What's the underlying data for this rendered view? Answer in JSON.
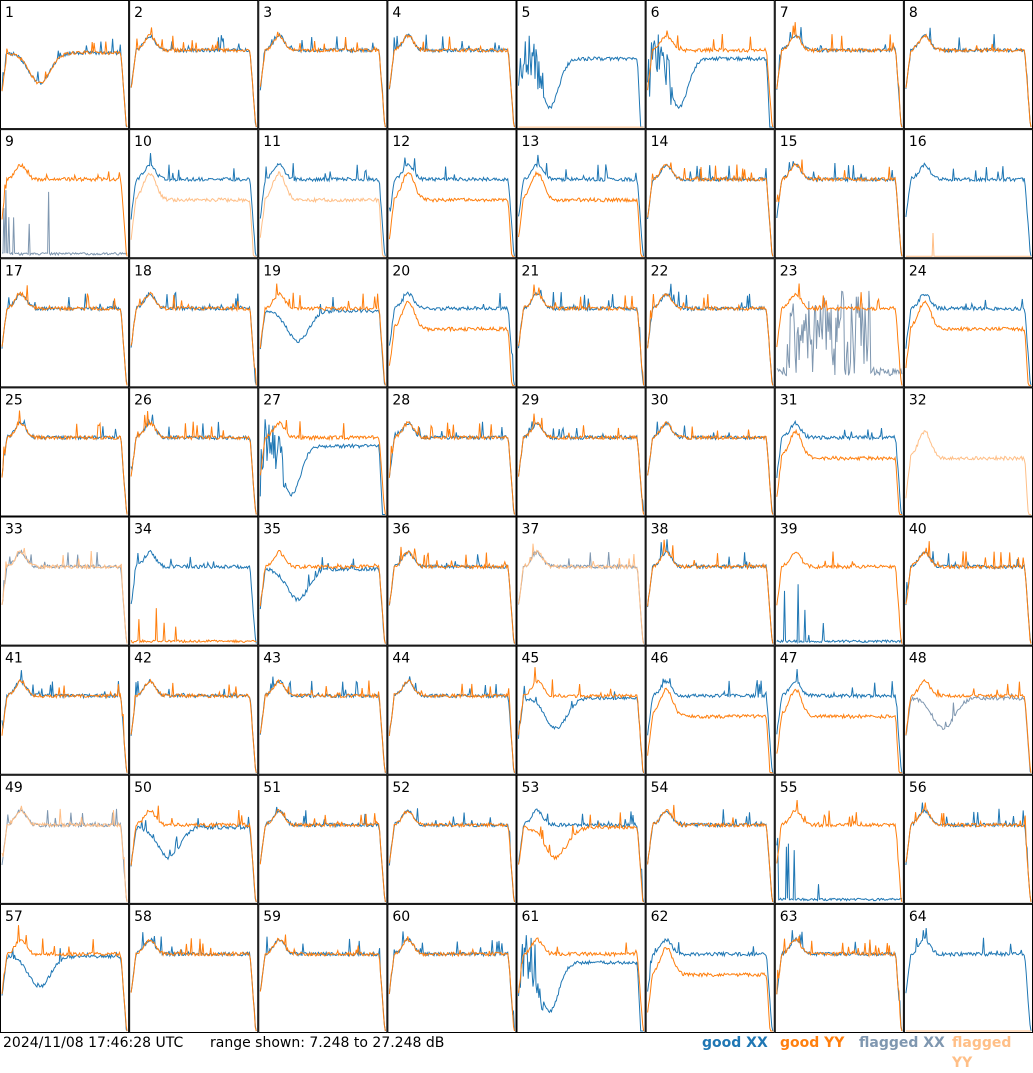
{
  "footer": {
    "timestamp": "2024/11/08 17:46:28 UTC",
    "range_text": "range shown: 7.248 to 27.248 dB",
    "legend": {
      "good_xx": "good XX",
      "good_yy": "good YY",
      "flagged_xx": "flagged XX",
      "flagged_yy": "flagged YY"
    }
  },
  "colors": {
    "good_xx": "#1f77b4",
    "good_yy": "#ff7f0e",
    "flagged_xx": "#7f97b0",
    "flagged_yy": "#ffbf87",
    "grid": "#000000"
  },
  "chart_data": {
    "type": "line",
    "grid_rows": 8,
    "grid_cols": 8,
    "y_range_db": [
      7.248,
      27.248
    ],
    "panels": [
      {
        "id": "1",
        "xx": "good",
        "yy": "good",
        "xx_shape": "dip",
        "yy_shape": "dip"
      },
      {
        "id": "2",
        "xx": "good",
        "yy": "good",
        "xx_shape": "flat",
        "yy_shape": "flat"
      },
      {
        "id": "3",
        "xx": "good",
        "yy": "good",
        "xx_shape": "flat",
        "yy_shape": "flat"
      },
      {
        "id": "4",
        "xx": "good",
        "yy": "good",
        "xx_shape": "flat",
        "yy_shape": "flat"
      },
      {
        "id": "5",
        "xx": "good",
        "yy": "flagged",
        "xx_shape": "deepdip",
        "yy_shape": "dead"
      },
      {
        "id": "6",
        "xx": "good",
        "yy": "good",
        "xx_shape": "deepdip",
        "yy_shape": "flat"
      },
      {
        "id": "7",
        "xx": "good",
        "yy": "good",
        "xx_shape": "flat",
        "yy_shape": "flat"
      },
      {
        "id": "8",
        "xx": "good",
        "yy": "good",
        "xx_shape": "flat",
        "yy_shape": "flat"
      },
      {
        "id": "9",
        "xx": "flagged",
        "yy": "good",
        "xx_shape": "spiky_low",
        "yy_shape": "flat"
      },
      {
        "id": "10",
        "xx": "good",
        "yy": "flagged",
        "xx_shape": "flat",
        "yy_shape": "lower"
      },
      {
        "id": "11",
        "xx": "good",
        "yy": "flagged",
        "xx_shape": "flat",
        "yy_shape": "lower"
      },
      {
        "id": "12",
        "xx": "good",
        "yy": "good",
        "xx_shape": "flat",
        "yy_shape": "lower"
      },
      {
        "id": "13",
        "xx": "good",
        "yy": "good",
        "xx_shape": "flat",
        "yy_shape": "lower"
      },
      {
        "id": "14",
        "xx": "good",
        "yy": "good",
        "xx_shape": "flat",
        "yy_shape": "flat"
      },
      {
        "id": "15",
        "xx": "good",
        "yy": "good",
        "xx_shape": "flat",
        "yy_shape": "flat"
      },
      {
        "id": "16",
        "xx": "good",
        "yy": "flagged",
        "xx_shape": "flat",
        "yy_shape": "dead"
      },
      {
        "id": "17",
        "xx": "good",
        "yy": "good",
        "xx_shape": "flat",
        "yy_shape": "flat"
      },
      {
        "id": "18",
        "xx": "good",
        "yy": "good",
        "xx_shape": "flat",
        "yy_shape": "flat"
      },
      {
        "id": "19",
        "xx": "good",
        "yy": "good",
        "xx_shape": "dip",
        "yy_shape": "flat"
      },
      {
        "id": "20",
        "xx": "good",
        "yy": "good",
        "xx_shape": "flat",
        "yy_shape": "lower"
      },
      {
        "id": "21",
        "xx": "good",
        "yy": "good",
        "xx_shape": "flat",
        "yy_shape": "flat"
      },
      {
        "id": "22",
        "xx": "good",
        "yy": "good",
        "xx_shape": "flat",
        "yy_shape": "flat"
      },
      {
        "id": "23",
        "xx": "flagged",
        "yy": "good",
        "xx_shape": "spiky",
        "yy_shape": "flat"
      },
      {
        "id": "24",
        "xx": "good",
        "yy": "good",
        "xx_shape": "flat",
        "yy_shape": "lower"
      },
      {
        "id": "25",
        "xx": "good",
        "yy": "good",
        "xx_shape": "flat",
        "yy_shape": "flat"
      },
      {
        "id": "26",
        "xx": "good",
        "yy": "good",
        "xx_shape": "flat",
        "yy_shape": "flat"
      },
      {
        "id": "27",
        "xx": "good",
        "yy": "good",
        "xx_shape": "deepdip",
        "yy_shape": "flat"
      },
      {
        "id": "28",
        "xx": "good",
        "yy": "good",
        "xx_shape": "flat",
        "yy_shape": "flat"
      },
      {
        "id": "29",
        "xx": "good",
        "yy": "good",
        "xx_shape": "flat",
        "yy_shape": "flat"
      },
      {
        "id": "30",
        "xx": "good",
        "yy": "good",
        "xx_shape": "flat",
        "yy_shape": "flat"
      },
      {
        "id": "31",
        "xx": "good",
        "yy": "good",
        "xx_shape": "flat",
        "yy_shape": "lower"
      },
      {
        "id": "32",
        "xx": "none",
        "yy": "flagged",
        "xx_shape": "none",
        "yy_shape": "lower"
      },
      {
        "id": "33",
        "xx": "flagged",
        "yy": "flagged",
        "xx_shape": "flat",
        "yy_shape": "flat"
      },
      {
        "id": "34",
        "xx": "good",
        "yy": "good",
        "xx_shape": "flat",
        "yy_shape": "spiky_low"
      },
      {
        "id": "35",
        "xx": "good",
        "yy": "good",
        "xx_shape": "dip",
        "yy_shape": "flat"
      },
      {
        "id": "36",
        "xx": "good",
        "yy": "good",
        "xx_shape": "flat",
        "yy_shape": "flat"
      },
      {
        "id": "37",
        "xx": "flagged",
        "yy": "flagged",
        "xx_shape": "flat",
        "yy_shape": "flat"
      },
      {
        "id": "38",
        "xx": "good",
        "yy": "good",
        "xx_shape": "flat",
        "yy_shape": "flat"
      },
      {
        "id": "39",
        "xx": "good",
        "yy": "good",
        "xx_shape": "spiky_low",
        "yy_shape": "flat"
      },
      {
        "id": "40",
        "xx": "good",
        "yy": "good",
        "xx_shape": "flat",
        "yy_shape": "flat"
      },
      {
        "id": "41",
        "xx": "good",
        "yy": "good",
        "xx_shape": "flat",
        "yy_shape": "flat"
      },
      {
        "id": "42",
        "xx": "good",
        "yy": "good",
        "xx_shape": "flat",
        "yy_shape": "flat"
      },
      {
        "id": "43",
        "xx": "good",
        "yy": "good",
        "xx_shape": "flat",
        "yy_shape": "flat"
      },
      {
        "id": "44",
        "xx": "good",
        "yy": "good",
        "xx_shape": "flat",
        "yy_shape": "flat"
      },
      {
        "id": "45",
        "xx": "good",
        "yy": "good",
        "xx_shape": "dip",
        "yy_shape": "flat"
      },
      {
        "id": "46",
        "xx": "good",
        "yy": "good",
        "xx_shape": "flat",
        "yy_shape": "lower"
      },
      {
        "id": "47",
        "xx": "good",
        "yy": "good",
        "xx_shape": "flat",
        "yy_shape": "lower"
      },
      {
        "id": "48",
        "xx": "flagged",
        "yy": "good",
        "xx_shape": "dip",
        "yy_shape": "flat"
      },
      {
        "id": "49",
        "xx": "flagged",
        "yy": "flagged",
        "xx_shape": "flat",
        "yy_shape": "flat"
      },
      {
        "id": "50",
        "xx": "good",
        "yy": "good",
        "xx_shape": "dip",
        "yy_shape": "flat"
      },
      {
        "id": "51",
        "xx": "good",
        "yy": "good",
        "xx_shape": "flat",
        "yy_shape": "flat"
      },
      {
        "id": "52",
        "xx": "good",
        "yy": "good",
        "xx_shape": "flat",
        "yy_shape": "flat"
      },
      {
        "id": "53",
        "xx": "good",
        "yy": "good",
        "xx_shape": "flat",
        "yy_shape": "dip"
      },
      {
        "id": "54",
        "xx": "good",
        "yy": "good",
        "xx_shape": "flat",
        "yy_shape": "flat"
      },
      {
        "id": "55",
        "xx": "good",
        "yy": "good",
        "xx_shape": "spiky_low",
        "yy_shape": "flat"
      },
      {
        "id": "56",
        "xx": "good",
        "yy": "good",
        "xx_shape": "flat",
        "yy_shape": "flat"
      },
      {
        "id": "57",
        "xx": "good",
        "yy": "good",
        "xx_shape": "dip",
        "yy_shape": "flat"
      },
      {
        "id": "58",
        "xx": "good",
        "yy": "good",
        "xx_shape": "flat",
        "yy_shape": "flat"
      },
      {
        "id": "59",
        "xx": "good",
        "yy": "good",
        "xx_shape": "flat",
        "yy_shape": "flat"
      },
      {
        "id": "60",
        "xx": "good",
        "yy": "good",
        "xx_shape": "flat",
        "yy_shape": "flat"
      },
      {
        "id": "61",
        "xx": "good",
        "yy": "good",
        "xx_shape": "deepdip",
        "yy_shape": "flat"
      },
      {
        "id": "62",
        "xx": "good",
        "yy": "good",
        "xx_shape": "flat",
        "yy_shape": "lower"
      },
      {
        "id": "63",
        "xx": "good",
        "yy": "good",
        "xx_shape": "flat",
        "yy_shape": "flat"
      },
      {
        "id": "64",
        "xx": "good",
        "yy": "flagged",
        "xx_shape": "flat",
        "yy_shape": "dead"
      }
    ]
  }
}
